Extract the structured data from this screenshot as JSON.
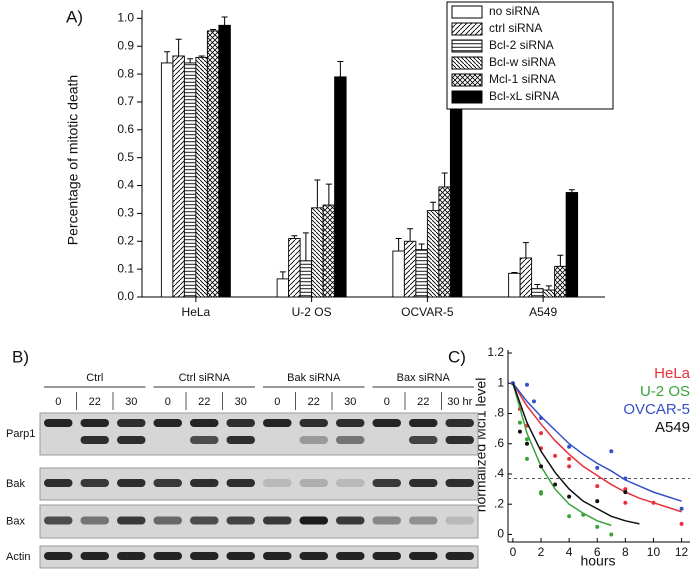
{
  "chart_data": [
    {
      "type": "bar",
      "panel_label": "A)",
      "ylabel": "Percentage of mitotic death",
      "categories": [
        "HeLa",
        "U-2 OS",
        "OCVAR-5",
        "A549"
      ],
      "series": [
        {
          "name": "no siRNA",
          "color": "#ffffff",
          "pattern": "none",
          "values": [
            0.84,
            0.065,
            0.165,
            0.085
          ],
          "errors": [
            0.04,
            0.025,
            0.045,
            0.003
          ]
        },
        {
          "name": "ctrl siRNA",
          "color": "#ffffff",
          "pattern": "diagonal",
          "values": [
            0.865,
            0.21,
            0.2,
            0.14
          ],
          "errors": [
            0.06,
            0.01,
            0.045,
            0.055
          ]
        },
        {
          "name": "Bcl-2 siRNA",
          "color": "#ffffff",
          "pattern": "horizontal",
          "values": [
            0.84,
            0.13,
            0.17,
            0.03
          ],
          "errors": [
            0.015,
            0.1,
            0.02,
            0.015
          ]
        },
        {
          "name": "Bcl-w siRNA",
          "color": "#ffffff",
          "pattern": "backdiagonal",
          "values": [
            0.86,
            0.32,
            0.31,
            0.025
          ],
          "errors": [
            0.005,
            0.1,
            0.03,
            0.015
          ]
        },
        {
          "name": "Mcl-1 siRNA",
          "color": "#ffffff",
          "pattern": "crosshatch",
          "values": [
            0.955,
            0.33,
            0.395,
            0.11
          ],
          "errors": [
            0.005,
            0.075,
            0.05,
            0.04
          ]
        },
        {
          "name": "Bcl-xL siRNA",
          "color": "#000000",
          "pattern": "none",
          "values": [
            0.975,
            0.79,
            0.725,
            0.375
          ],
          "errors": [
            0.03,
            0.055,
            0.085,
            0.01
          ]
        }
      ],
      "ylim": [
        0,
        1.03
      ],
      "yticks": [
        {
          "value": 0,
          "label": "0.0"
        },
        0.1,
        0.2,
        0.3,
        0.4,
        0.5,
        0.6,
        0.7,
        0.8,
        0.9,
        {
          "value": 1,
          "label": "1.0"
        }
      ],
      "legend": "top-right"
    },
    {
      "type": "scatter",
      "panel_label": "C)",
      "xlabel": "hours",
      "ylabel": "normalized Mcl1 level",
      "series": [
        {
          "name": "HeLa",
          "color": "#e8313a",
          "x": [
            0,
            0.5,
            1,
            2,
            2,
            3,
            4,
            4,
            6,
            8,
            8,
            10,
            12
          ],
          "values": [
            1,
            0.83,
            0.72,
            0.67,
            0.57,
            0.52,
            0.45,
            0.5,
            0.32,
            0.3,
            0.21,
            0.21,
            0.07
          ],
          "fit_x": [
            0,
            1,
            2,
            3,
            4,
            5,
            6,
            7,
            8,
            9,
            10,
            11,
            12
          ],
          "fit_values": [
            1,
            0.85,
            0.73,
            0.62,
            0.53,
            0.45,
            0.39,
            0.33,
            0.28,
            0.24,
            0.21,
            0.18,
            0.15
          ]
        },
        {
          "name": "U-2 OS",
          "color": "#3aa33a",
          "x": [
            0.5,
            1,
            1,
            2,
            2,
            4,
            5,
            6,
            7
          ],
          "values": [
            0.74,
            0.5,
            0.63,
            0.28,
            0.27,
            0.12,
            0.13,
            0.05,
            0
          ],
          "fit_x": [
            0,
            1,
            2,
            3,
            4,
            5,
            6,
            7
          ],
          "fit_values": [
            1,
            0.67,
            0.45,
            0.3,
            0.2,
            0.14,
            0.09,
            0.06
          ]
        },
        {
          "name": "OVCAR-5",
          "color": "#3550c8",
          "x": [
            0,
            1,
            1.5,
            2,
            4,
            6,
            7,
            8,
            12
          ],
          "values": [
            1,
            0.99,
            0.88,
            0.77,
            0.58,
            0.44,
            0.55,
            0.37,
            0.17
          ],
          "fit_x": [
            0,
            1,
            2,
            3,
            4,
            5,
            6,
            7,
            8,
            9,
            10,
            11,
            12
          ],
          "fit_values": [
            1,
            0.88,
            0.78,
            0.69,
            0.6,
            0.53,
            0.47,
            0.42,
            0.36,
            0.32,
            0.28,
            0.25,
            0.22
          ]
        },
        {
          "name": "A549",
          "color": "#111111",
          "x": [
            0.5,
            1,
            2,
            3,
            4,
            6,
            8
          ],
          "values": [
            0.68,
            0.6,
            0.45,
            0.33,
            0.25,
            0.22,
            0.28
          ],
          "fit_x": [
            0,
            1,
            2,
            3,
            4,
            5,
            6,
            7,
            8,
            9
          ],
          "fit_values": [
            1,
            0.74,
            0.55,
            0.41,
            0.3,
            0.22,
            0.17,
            0.12,
            0.09,
            0.07
          ]
        }
      ],
      "reference_line": 0.37,
      "xlim": [
        -0.35,
        12.6
      ],
      "xticks": [
        0,
        2,
        4,
        6,
        8,
        10,
        12
      ],
      "ylim": [
        -0.05,
        1.22
      ],
      "yticks": [
        0,
        {
          "value": 0.2,
          "label": ".2"
        },
        {
          "value": 0.4,
          "label": ".4"
        },
        {
          "value": 0.6,
          "label": ".6"
        },
        {
          "value": 0.8,
          "label": ".8"
        },
        1,
        1.2
      ],
      "legend": "top-right"
    }
  ],
  "blot": {
    "panel_label": "B)",
    "groups": [
      "Ctrl",
      "Ctrl siRNA",
      "Bak siRNA",
      "Bax siRNA"
    ],
    "lanes": [
      "0",
      "22",
      "30",
      "0",
      "22",
      "30",
      "0",
      "22",
      "30",
      "0",
      "22",
      "30 hr"
    ],
    "rows": [
      "Parp1",
      "Bak",
      "Bax",
      "Actin"
    ]
  }
}
